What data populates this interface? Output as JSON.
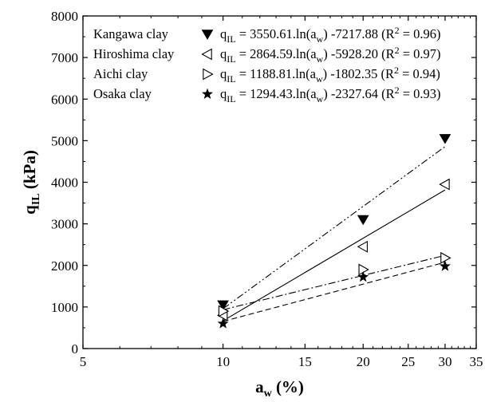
{
  "chart_data": {
    "type": "scatter",
    "title": "",
    "xlabel": "a_w (%)",
    "ylabel": "q_IL (kPa)",
    "x_scale": "log",
    "xlim": [
      5,
      35
    ],
    "ylim": [
      0,
      8000
    ],
    "x_ticks": [
      5,
      10,
      15,
      20,
      25,
      30,
      35
    ],
    "x_tick_labels": [
      "5",
      "10",
      "15",
      "20",
      "25",
      "30",
      "35"
    ],
    "y_ticks": [
      0,
      1000,
      2000,
      3000,
      4000,
      5000,
      6000,
      7000,
      8000
    ],
    "y_tick_labels": [
      "0",
      "1000",
      "2000",
      "3000",
      "4000",
      "5000",
      "6000",
      "7000",
      "8000"
    ],
    "grid": false,
    "legend_position": "top-left",
    "series": [
      {
        "name": "Kangawa clay",
        "marker": "down-triangle-filled",
        "line_style": "dash-dot-dot",
        "equation": "q_IL = 3550.61.ln(a_w) -7217.88 (R^2 = 0.96)",
        "x": [
          10,
          20,
          30
        ],
        "y": [
          1050,
          3100,
          5050
        ],
        "fit": {
          "a": 3550.61,
          "b": -7217.88
        }
      },
      {
        "name": "Hiroshima clay",
        "marker": "left-triangle-open",
        "line_style": "solid",
        "equation": "q_IL = 2864.59.ln(a_w) -5928.20 (R^2 = 0.97)",
        "x": [
          10,
          20,
          30
        ],
        "y": [
          800,
          2450,
          3950
        ],
        "fit": {
          "a": 2864.59,
          "b": -5928.2
        }
      },
      {
        "name": "Aichi clay",
        "marker": "right-triangle-open",
        "line_style": "dash-dot",
        "equation": "q_IL = 1188.81.ln(a_w) -1802.35 (R^2 = 0.94)",
        "x": [
          10,
          20,
          30
        ],
        "y": [
          900,
          1900,
          2180
        ],
        "fit": {
          "a": 1188.81,
          "b": -1802.35
        }
      },
      {
        "name": "Osaka clay",
        "marker": "star-filled",
        "line_style": "dashed",
        "equation": "q_IL = 1294.43.ln(a_w) -2327.64 (R^2 = 0.93)",
        "x": [
          10,
          20,
          30
        ],
        "y": [
          600,
          1720,
          1980
        ],
        "fit": {
          "a": 1294.43,
          "b": -2327.64
        }
      }
    ]
  }
}
